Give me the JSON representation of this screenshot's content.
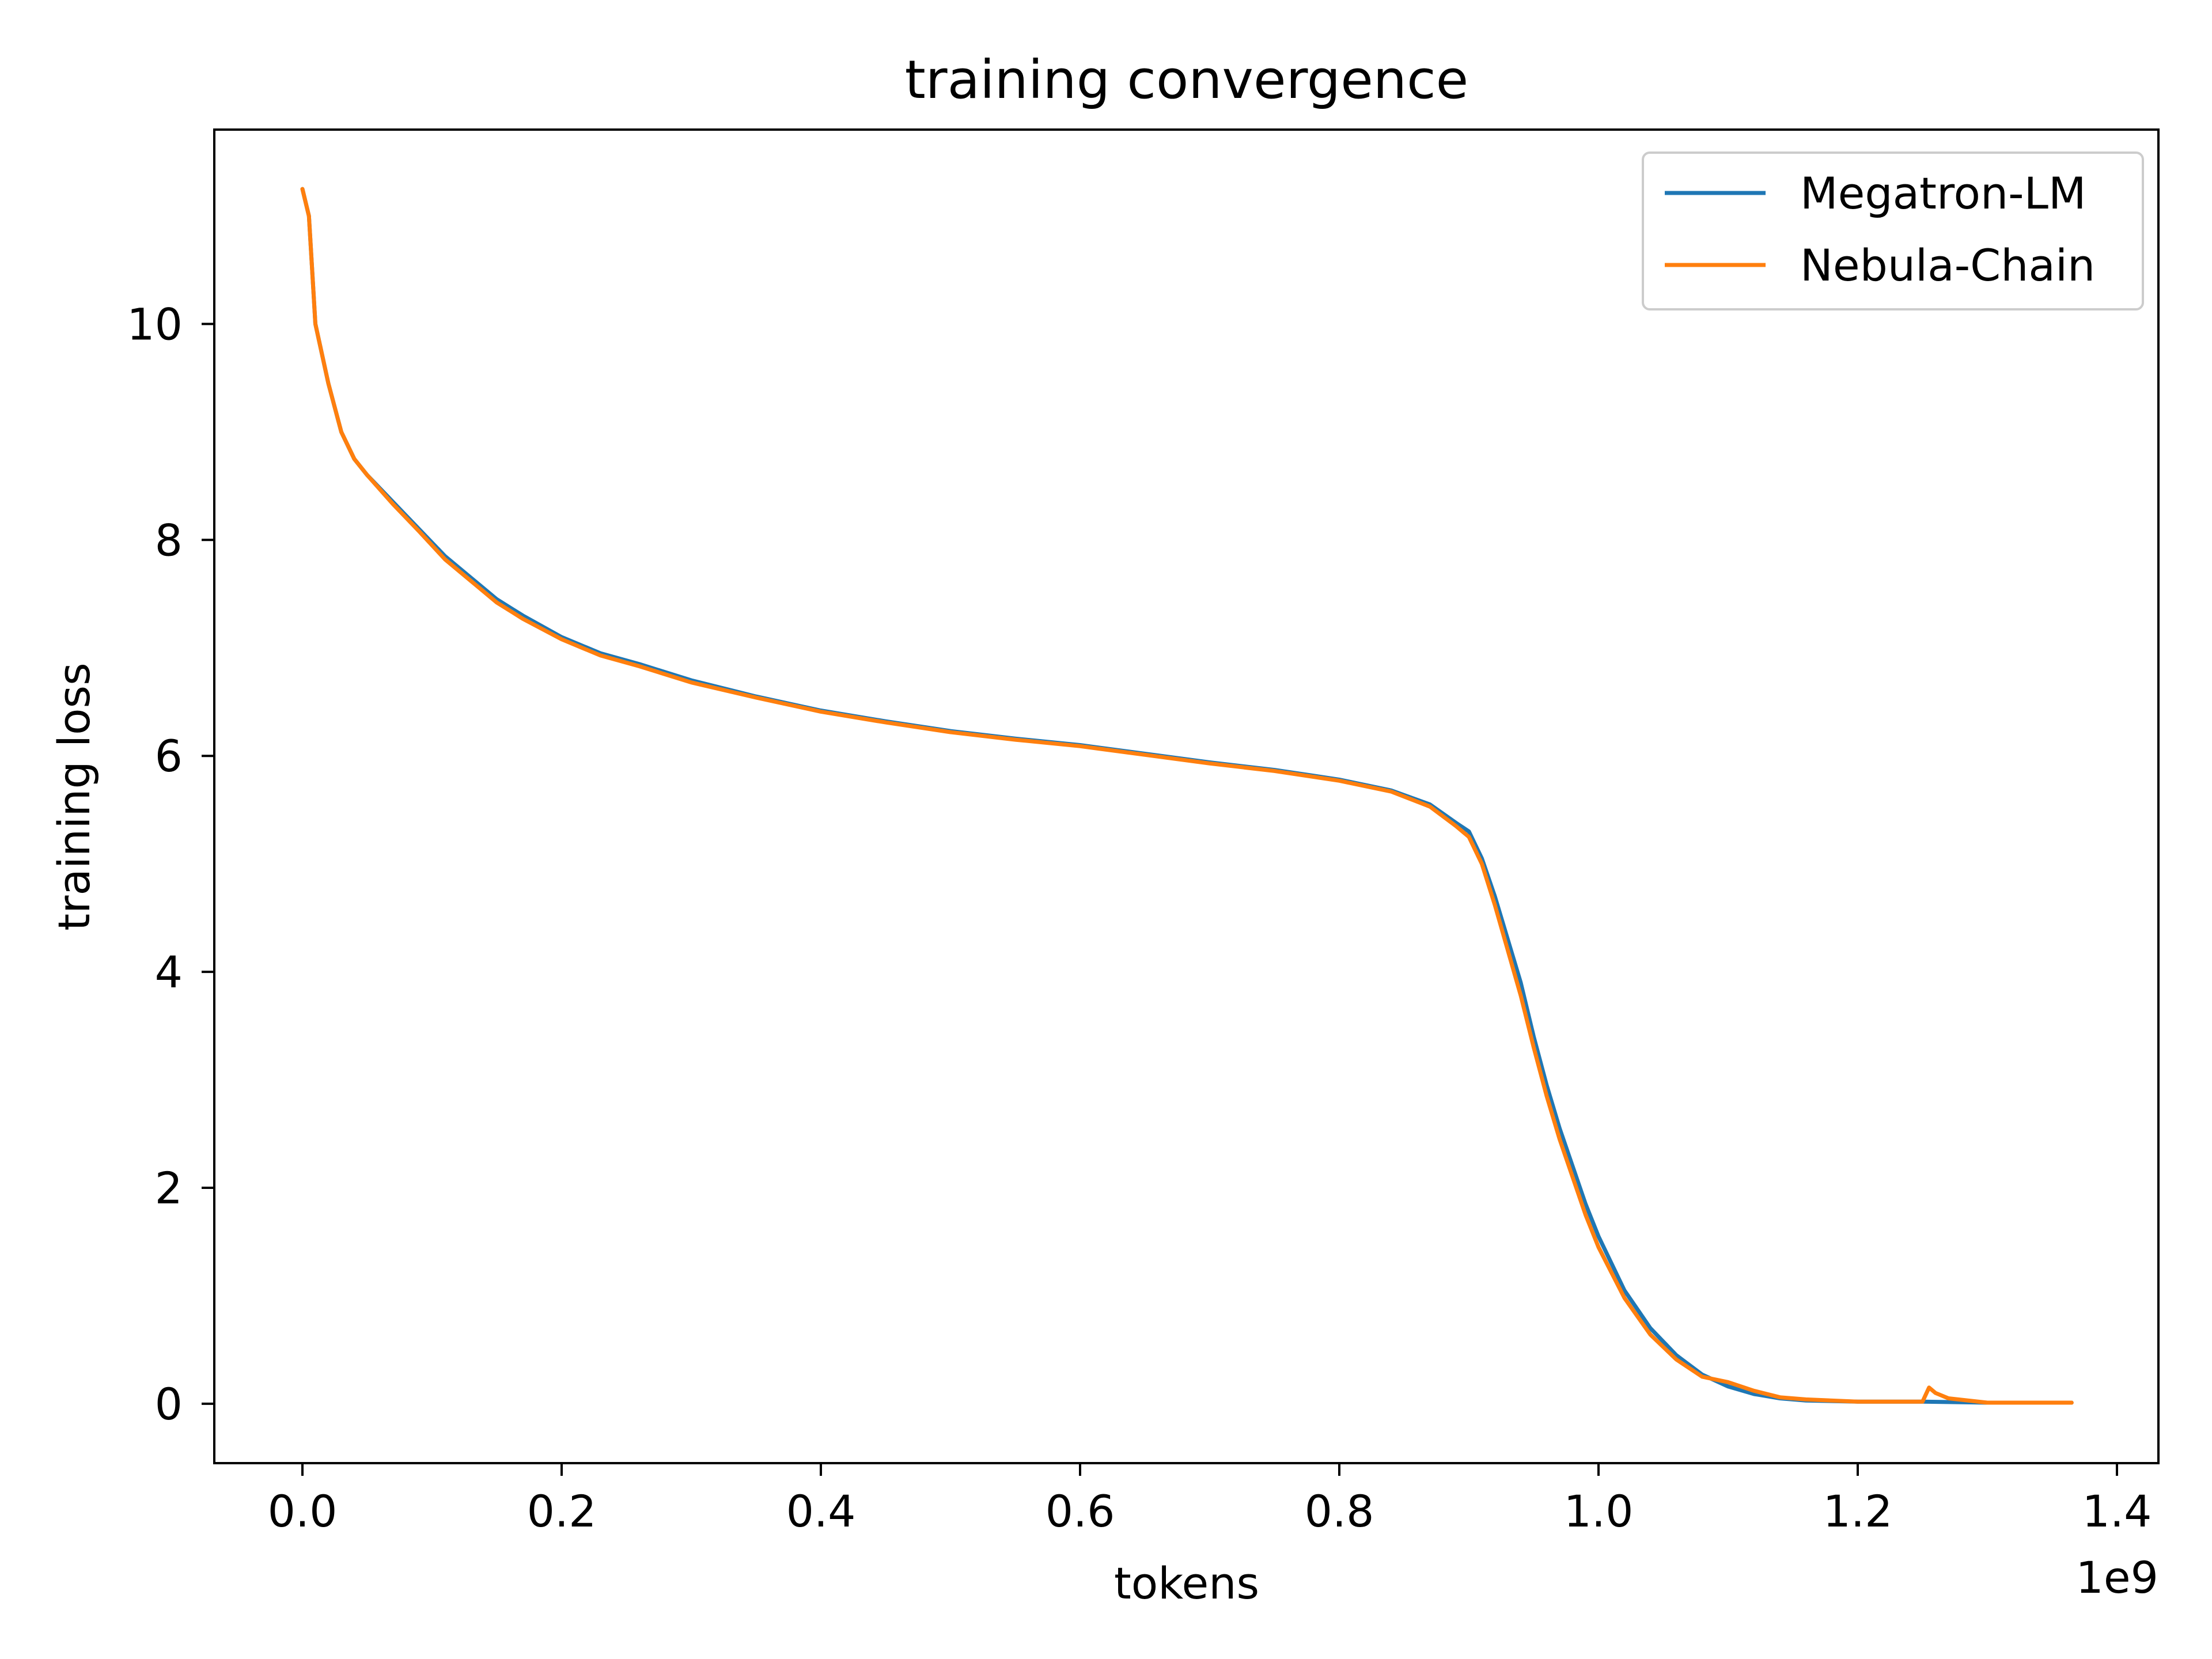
{
  "chart_data": {
    "type": "line",
    "title": "training convergence",
    "xlabel": "tokens",
    "ylabel": "training loss",
    "x_offset_label": "1e9",
    "xlim": [
      -0.068,
      1.432
    ],
    "ylim": [
      -0.55,
      11.8
    ],
    "xticks": [
      0.0,
      0.2,
      0.4,
      0.6,
      0.8,
      1.0,
      1.2,
      1.4
    ],
    "xtick_labels": [
      "0.0",
      "0.2",
      "0.4",
      "0.6",
      "0.8",
      "1.0",
      "1.2",
      "1.4"
    ],
    "yticks": [
      0,
      2,
      4,
      6,
      8,
      10
    ],
    "ytick_labels": [
      "0",
      "2",
      "4",
      "6",
      "8",
      "10"
    ],
    "grid": false,
    "legend_position": "top-right",
    "series": [
      {
        "name": "Megatron-LM",
        "color": "#1f77b4",
        "x": [
          0.0,
          0.005,
          0.01,
          0.02,
          0.03,
          0.04,
          0.05,
          0.07,
          0.09,
          0.11,
          0.13,
          0.15,
          0.17,
          0.2,
          0.23,
          0.26,
          0.3,
          0.35,
          0.4,
          0.45,
          0.5,
          0.55,
          0.6,
          0.65,
          0.7,
          0.75,
          0.8,
          0.84,
          0.87,
          0.89,
          0.9,
          0.91,
          0.92,
          0.93,
          0.94,
          0.95,
          0.96,
          0.97,
          0.98,
          0.99,
          1.0,
          1.02,
          1.04,
          1.06,
          1.08,
          1.1,
          1.12,
          1.14,
          1.16,
          1.2,
          1.25,
          1.3,
          1.365
        ],
        "y": [
          11.25,
          11.0,
          10.0,
          9.45,
          9.0,
          8.75,
          8.6,
          8.35,
          8.1,
          7.85,
          7.65,
          7.45,
          7.3,
          7.1,
          6.95,
          6.85,
          6.7,
          6.55,
          6.42,
          6.32,
          6.23,
          6.16,
          6.1,
          6.02,
          5.94,
          5.87,
          5.78,
          5.68,
          5.55,
          5.38,
          5.3,
          5.05,
          4.7,
          4.3,
          3.9,
          3.4,
          2.95,
          2.55,
          2.2,
          1.85,
          1.55,
          1.05,
          0.7,
          0.45,
          0.27,
          0.16,
          0.09,
          0.05,
          0.03,
          0.02,
          0.02,
          0.01,
          0.01
        ]
      },
      {
        "name": "Nebula-Chain",
        "color": "#ff7f0e",
        "x": [
          0.0,
          0.005,
          0.01,
          0.02,
          0.03,
          0.04,
          0.05,
          0.07,
          0.09,
          0.11,
          0.13,
          0.15,
          0.17,
          0.2,
          0.23,
          0.26,
          0.3,
          0.35,
          0.4,
          0.45,
          0.5,
          0.55,
          0.6,
          0.65,
          0.7,
          0.75,
          0.8,
          0.84,
          0.87,
          0.89,
          0.9,
          0.91,
          0.92,
          0.93,
          0.94,
          0.95,
          0.96,
          0.97,
          0.98,
          0.99,
          1.0,
          1.02,
          1.04,
          1.06,
          1.08,
          1.1,
          1.12,
          1.14,
          1.16,
          1.2,
          1.25,
          1.255,
          1.26,
          1.27,
          1.3,
          1.365
        ],
        "y": [
          11.25,
          11.0,
          10.0,
          9.45,
          9.0,
          8.75,
          8.6,
          8.33,
          8.08,
          7.82,
          7.62,
          7.42,
          7.27,
          7.08,
          6.93,
          6.83,
          6.68,
          6.54,
          6.41,
          6.31,
          6.22,
          6.15,
          6.09,
          6.01,
          5.93,
          5.86,
          5.77,
          5.67,
          5.53,
          5.35,
          5.25,
          5.0,
          4.62,
          4.2,
          3.78,
          3.3,
          2.85,
          2.45,
          2.1,
          1.75,
          1.45,
          0.98,
          0.64,
          0.41,
          0.25,
          0.2,
          0.12,
          0.06,
          0.04,
          0.02,
          0.02,
          0.15,
          0.1,
          0.05,
          0.01,
          0.01
        ]
      }
    ]
  }
}
